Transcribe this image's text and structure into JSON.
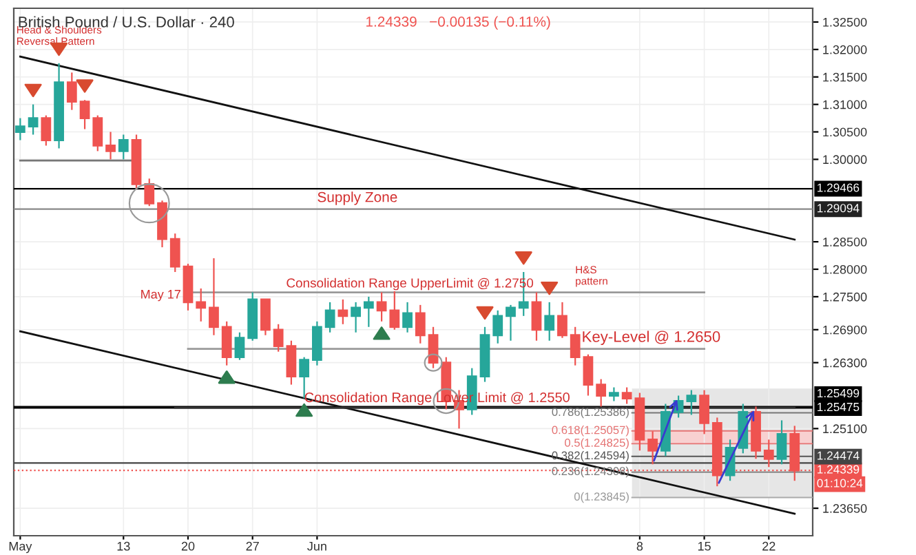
{
  "chart_data": {
    "type": "candlestick",
    "title": "British Pound / U.S. Dollar · 240",
    "subtitle": "1.24339   −0.00135 (−0.11%)",
    "categories": [
      "May",
      null,
      null,
      null,
      null,
      null,
      null,
      null,
      "13",
      null,
      null,
      null,
      null,
      "20",
      null,
      null,
      null,
      null,
      "27",
      null,
      null,
      null,
      null,
      "Jun",
      null,
      null,
      null,
      null,
      null,
      null,
      null,
      null,
      null,
      null,
      null,
      null,
      null,
      null,
      null,
      null,
      null,
      null,
      null,
      null,
      null,
      null,
      null,
      null,
      "8",
      null,
      null,
      null,
      null,
      "15",
      null,
      null,
      null,
      null,
      "22",
      null,
      null
    ],
    "ohlc": [
      [
        1.305,
        1.3075,
        1.3035,
        1.306
      ],
      [
        1.306,
        1.31,
        1.3045,
        1.3075
      ],
      [
        1.3075,
        1.308,
        1.3025,
        1.3035
      ],
      [
        1.3035,
        1.3175,
        1.302,
        1.314
      ],
      [
        1.314,
        1.3158,
        1.309,
        1.3105
      ],
      [
        1.3105,
        1.3108,
        1.3055,
        1.3075
      ],
      [
        1.3075,
        1.308,
        1.3015,
        1.3025
      ],
      [
        1.3025,
        1.305,
        1.3,
        1.3015
      ],
      [
        1.3015,
        1.3045,
        1.3,
        1.3035
      ],
      [
        1.3035,
        1.3045,
        1.2945,
        1.2955
      ],
      [
        1.2955,
        1.2965,
        1.2915,
        1.292
      ],
      [
        1.292,
        1.2925,
        1.284,
        1.2855
      ],
      [
        1.2855,
        1.2865,
        1.2795,
        1.2805
      ],
      [
        1.2805,
        1.281,
        1.2725,
        1.274
      ],
      [
        1.274,
        1.2765,
        1.2705,
        1.273
      ],
      [
        1.273,
        1.282,
        1.268,
        1.2695
      ],
      [
        1.2695,
        1.2705,
        1.2625,
        1.264
      ],
      [
        1.264,
        1.2685,
        1.2635,
        1.2675
      ],
      [
        1.2675,
        1.2758,
        1.267,
        1.2745
      ],
      [
        1.2745,
        1.2745,
        1.268,
        1.269
      ],
      [
        1.269,
        1.27,
        1.265,
        1.266
      ],
      [
        1.266,
        1.267,
        1.259,
        1.2605
      ],
      [
        1.2605,
        1.264,
        1.2565,
        1.2635
      ],
      [
        1.2635,
        1.2705,
        1.2625,
        1.2695
      ],
      [
        1.2695,
        1.274,
        1.2685,
        1.2725
      ],
      [
        1.2725,
        1.2745,
        1.27,
        1.2715
      ],
      [
        1.2715,
        1.274,
        1.2685,
        1.273
      ],
      [
        1.273,
        1.275,
        1.2695,
        1.274
      ],
      [
        1.274,
        1.2758,
        1.2705,
        1.2725
      ],
      [
        1.2725,
        1.276,
        1.269,
        1.2695
      ],
      [
        1.2695,
        1.274,
        1.2685,
        1.272
      ],
      [
        1.272,
        1.2735,
        1.2665,
        1.268
      ],
      [
        1.268,
        1.2695,
        1.262,
        1.263
      ],
      [
        1.263,
        1.264,
        1.2545,
        1.256
      ],
      [
        1.256,
        1.258,
        1.251,
        1.2545
      ],
      [
        1.2545,
        1.262,
        1.2535,
        1.2605
      ],
      [
        1.2605,
        1.2695,
        1.2595,
        1.268
      ],
      [
        1.268,
        1.2725,
        1.2665,
        1.2715
      ],
      [
        1.2715,
        1.2735,
        1.267,
        1.273
      ],
      [
        1.273,
        1.2795,
        1.2715,
        1.274
      ],
      [
        1.274,
        1.2758,
        1.267,
        1.269
      ],
      [
        1.269,
        1.274,
        1.267,
        1.2715
      ],
      [
        1.2715,
        1.274,
        1.2675,
        1.268
      ],
      [
        1.268,
        1.2695,
        1.2625,
        1.264
      ],
      [
        1.264,
        1.2645,
        1.257,
        1.259
      ],
      [
        1.259,
        1.26,
        1.255,
        1.257
      ],
      [
        1.257,
        1.2585,
        1.256,
        1.2575
      ],
      [
        1.2575,
        1.2585,
        1.2555,
        1.2565
      ],
      [
        1.2565,
        1.2575,
        1.247,
        1.249
      ],
      [
        1.249,
        1.2505,
        1.2445,
        1.247
      ],
      [
        1.247,
        1.2555,
        1.246,
        1.254
      ],
      [
        1.254,
        1.257,
        1.253,
        1.256
      ],
      [
        1.256,
        1.258,
        1.2535,
        1.257
      ],
      [
        1.257,
        1.258,
        1.25,
        1.252
      ],
      [
        1.252,
        1.253,
        1.2405,
        1.2425
      ],
      [
        1.2425,
        1.249,
        1.2415,
        1.2475
      ],
      [
        1.2475,
        1.2555,
        1.2465,
        1.254
      ],
      [
        1.254,
        1.255,
        1.2455,
        1.247
      ],
      [
        1.247,
        1.249,
        1.244,
        1.2455
      ],
      [
        1.2455,
        1.2525,
        1.2445,
        1.25
      ],
      [
        1.25,
        1.2515,
        1.2415,
        1.2434
      ]
    ],
    "colors": [
      "#26a69a",
      "#26a69a",
      "#ef5350",
      "#26a69a",
      "#ef5350",
      "#ef5350",
      "#ef5350",
      "#ef5350",
      "#26a69a",
      "#ef5350",
      "#ef5350",
      "#ef5350",
      "#ef5350",
      "#ef5350",
      "#ef5350",
      "#ef5350",
      "#ef5350",
      "#26a69a",
      "#26a69a",
      "#ef5350",
      "#ef5350",
      "#ef5350",
      "#26a69a",
      "#26a69a",
      "#26a69a",
      "#ef5350",
      "#26a69a",
      "#26a69a",
      "#ef5350",
      "#ef5350",
      "#26a69a",
      "#ef5350",
      "#ef5350",
      "#ef5350",
      "#ef5350",
      "#26a69a",
      "#26a69a",
      "#26a69a",
      "#26a69a",
      "#26a69a",
      "#ef5350",
      "#26a69a",
      "#ef5350",
      "#ef5350",
      "#ef5350",
      "#ef5350",
      "#26a69a",
      "#ef5350",
      "#ef5350",
      "#ef5350",
      "#26a69a",
      "#26a69a",
      "#26a69a",
      "#ef5350",
      "#ef5350",
      "#26a69a",
      "#26a69a",
      "#ef5350",
      "#ef5350",
      "#26a69a",
      "#ef5350"
    ],
    "series": [
      {
        "type": "line",
        "color": "#111111",
        "values": [
          1.3187,
          null,
          null,
          null,
          null,
          null,
          null,
          null,
          null,
          null,
          null,
          null,
          null,
          null,
          null,
          null,
          null,
          null,
          null,
          null,
          null,
          null,
          null,
          null,
          null,
          null,
          null,
          null,
          null,
          null,
          null,
          null,
          null,
          null,
          null,
          null,
          null,
          null,
          null,
          null,
          null,
          null,
          null,
          null,
          null,
          null,
          null,
          null,
          null,
          null,
          null,
          null,
          null,
          null,
          null,
          null,
          null,
          null,
          null,
          null,
          1.2854
        ]
      },
      {
        "type": "line",
        "color": "#111111",
        "values": [
          1.2687,
          null,
          null,
          null,
          null,
          null,
          null,
          null,
          null,
          null,
          null,
          null,
          null,
          null,
          null,
          null,
          null,
          null,
          null,
          null,
          null,
          null,
          null,
          null,
          null,
          null,
          null,
          null,
          null,
          null,
          null,
          null,
          null,
          null,
          null,
          null,
          null,
          null,
          null,
          null,
          null,
          null,
          null,
          null,
          null,
          null,
          null,
          null,
          null,
          null,
          null,
          null,
          null,
          null,
          null,
          null,
          null,
          null,
          null,
          null,
          1.2355
        ]
      },
      {
        "type": "line",
        "color": "#777777",
        "values": [
          1.2998,
          null,
          null,
          null,
          null,
          null,
          null,
          null,
          null,
          1.2998,
          null,
          null,
          null,
          null,
          null,
          null,
          null,
          null,
          null,
          null,
          null,
          null,
          null,
          null,
          null,
          null,
          null,
          null,
          null,
          null,
          null,
          null,
          null,
          null,
          null,
          null,
          null,
          null,
          null,
          null,
          null,
          null,
          null,
          null,
          null,
          null,
          null,
          null,
          null,
          null,
          null,
          null,
          null,
          null,
          null,
          null,
          null,
          null,
          null,
          null,
          null
        ]
      },
      {
        "type": "line",
        "color": "#999999",
        "values": [
          null,
          null,
          null,
          null,
          null,
          null,
          null,
          null,
          null,
          null,
          null,
          null,
          null,
          1.2758,
          null,
          null,
          null,
          null,
          null,
          null,
          null,
          null,
          null,
          null,
          null,
          null,
          null,
          null,
          null,
          null,
          null,
          null,
          null,
          null,
          null,
          null,
          null,
          null,
          null,
          null,
          null,
          null,
          null,
          null,
          null,
          null,
          null,
          null,
          null,
          null,
          null,
          null,
          null,
          1.2758,
          null,
          null,
          null,
          null,
          null,
          null,
          null
        ]
      },
      {
        "type": "line",
        "color": "#999999",
        "values": [
          null,
          null,
          null,
          null,
          null,
          null,
          null,
          null,
          null,
          null,
          null,
          null,
          null,
          1.2655,
          null,
          null,
          null,
          null,
          null,
          null,
          null,
          null,
          null,
          null,
          null,
          null,
          null,
          null,
          null,
          null,
          null,
          null,
          null,
          null,
          null,
          null,
          null,
          null,
          null,
          null,
          null,
          null,
          null,
          null,
          null,
          null,
          null,
          null,
          null,
          null,
          null,
          null,
          null,
          1.2655,
          null,
          null,
          null,
          null,
          null,
          null,
          null
        ]
      },
      {
        "type": "line",
        "color": "#333333",
        "values": [
          null,
          null,
          null,
          null,
          null,
          null,
          null,
          null,
          null,
          null,
          null,
          null,
          1.2548,
          null,
          null,
          null,
          null,
          null,
          null,
          null,
          null,
          null,
          null,
          null,
          null,
          null,
          null,
          null,
          null,
          null,
          null,
          null,
          null,
          null,
          null,
          null,
          null,
          null,
          null,
          null,
          null,
          null,
          null,
          null,
          null,
          null,
          null,
          null,
          null,
          null,
          null,
          null,
          null,
          null,
          null,
          null,
          null,
          null,
          null,
          null,
          1.2548
        ]
      }
    ],
    "ylim": [
      1.2315,
      1.3275
    ],
    "yticks": [
      {
        "value": 1.325,
        "label": "1.32500"
      },
      {
        "value": 1.32,
        "label": "1.32000"
      },
      {
        "value": 1.315,
        "label": "1.31500"
      },
      {
        "value": 1.31,
        "label": "1.31000"
      },
      {
        "value": 1.305,
        "label": "1.30500"
      },
      {
        "value": 1.3,
        "label": "1.30000"
      },
      {
        "value": 1.285,
        "label": "1.28500"
      },
      {
        "value": 1.28,
        "label": "1.28000"
      },
      {
        "value": 1.275,
        "label": "1.27500"
      },
      {
        "value": 1.269,
        "label": "1.26900"
      },
      {
        "value": 1.263,
        "label": "1.26300"
      },
      {
        "value": 1.251,
        "label": "1.25100"
      },
      {
        "value": 1.2365,
        "label": "1.23650"
      }
    ],
    "ref_lines": [
      {
        "axis": "y",
        "value": 1.29466,
        "label": "1.29466",
        "color": "#000000"
      },
      {
        "axis": "y",
        "value": 1.29094,
        "label": "1.29094",
        "color": "#888888"
      },
      {
        "axis": "y",
        "value": 1.25499,
        "label": "1.25499",
        "color": "#000000"
      },
      {
        "axis": "y",
        "value": 1.25475,
        "label": "1.25475",
        "color": "#000000"
      },
      {
        "axis": "y",
        "value": 1.24474,
        "label": "1.24474",
        "color": "#444444"
      },
      {
        "axis": "y",
        "value": 1.24339,
        "label": "1.24339",
        "color": "#ef5350",
        "line_style": "dotted"
      },
      {
        "axis": "y",
        "value": 1.25386,
        "label": "0.786(1.25386)",
        "color": "#777777"
      },
      {
        "axis": "y",
        "value": 1.25057,
        "label": "0.618(1.25057)",
        "color": "#e57373"
      },
      {
        "axis": "y",
        "value": 1.24825,
        "label": "0.5(1.24825)",
        "color": "#e57373"
      },
      {
        "axis": "y",
        "value": 1.24594,
        "label": "0.382(1.24594)",
        "color": "#555555"
      },
      {
        "axis": "y",
        "value": 1.24308,
        "label": "0.236(1.24308)",
        "color": "#777777"
      },
      {
        "axis": "y",
        "value": 1.23845,
        "label": "0(1.23845)",
        "color": "#aaaaaa"
      }
    ],
    "bands": [
      {
        "axis": "y",
        "from": 1.23845,
        "to": 1.2583,
        "color": "#e6e6e6"
      },
      {
        "axis": "y",
        "from": 1.24825,
        "to": 1.25057,
        "color": "#f8d0d0"
      }
    ],
    "annotations": [
      "Head & Shoulders\nReversal Pattern",
      "Supply Zone",
      "May 17",
      "Consolidation Range UpperLimit @ 1.2750",
      "H&S\npattern",
      "Key-Level @ 1.2650",
      "Consolidation Range Lower Limit @ 1.2550",
      "01:10:24"
    ],
    "grid": true
  }
}
